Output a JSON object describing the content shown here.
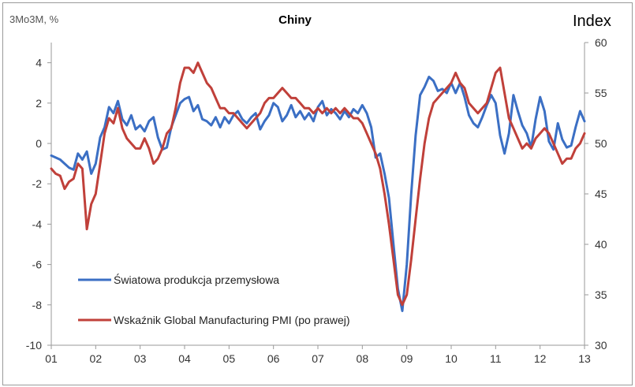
{
  "chart_data": {
    "type": "line",
    "title": "Chiny",
    "ylabel_left": "3Mo3M, %",
    "ylabel_right": "Index",
    "x_tick_labels": [
      "01",
      "02",
      "03",
      "04",
      "05",
      "06",
      "07",
      "08",
      "09",
      "10",
      "11",
      "12",
      "13"
    ],
    "x_range": [
      2001.0,
      2013.0
    ],
    "y_left": {
      "ticks": [
        4,
        2,
        0,
        -2,
        -4,
        -6,
        -8,
        -10
      ],
      "ylim": [
        -10,
        5
      ]
    },
    "y_right": {
      "ticks": [
        60,
        55,
        50,
        45,
        40,
        35,
        30
      ],
      "ylim": [
        30,
        60
      ]
    },
    "grid": false,
    "legend_placement": "lower-left",
    "series": [
      {
        "name": "Światowa produkcja przemysłowa",
        "axis": "left",
        "color": "#3b6fc4",
        "points": [
          [
            2001.0,
            -0.6
          ],
          [
            2001.1,
            -0.7
          ],
          [
            2001.2,
            -0.8
          ],
          [
            2001.3,
            -1.0
          ],
          [
            2001.4,
            -1.2
          ],
          [
            2001.5,
            -1.3
          ],
          [
            2001.6,
            -0.5
          ],
          [
            2001.7,
            -0.8
          ],
          [
            2001.8,
            -0.4
          ],
          [
            2001.9,
            -1.5
          ],
          [
            2002.0,
            -1.0
          ],
          [
            2002.1,
            0.3
          ],
          [
            2002.2,
            0.8
          ],
          [
            2002.3,
            1.8
          ],
          [
            2002.4,
            1.5
          ],
          [
            2002.5,
            2.1
          ],
          [
            2002.6,
            1.2
          ],
          [
            2002.7,
            0.9
          ],
          [
            2002.8,
            1.4
          ],
          [
            2002.9,
            0.7
          ],
          [
            2003.0,
            0.9
          ],
          [
            2003.1,
            0.6
          ],
          [
            2003.2,
            1.1
          ],
          [
            2003.3,
            1.3
          ],
          [
            2003.4,
            0.3
          ],
          [
            2003.5,
            -0.3
          ],
          [
            2003.6,
            -0.2
          ],
          [
            2003.7,
            0.8
          ],
          [
            2003.8,
            1.4
          ],
          [
            2003.9,
            2.0
          ],
          [
            2004.0,
            2.2
          ],
          [
            2004.1,
            2.3
          ],
          [
            2004.2,
            1.6
          ],
          [
            2004.3,
            1.9
          ],
          [
            2004.4,
            1.2
          ],
          [
            2004.5,
            1.1
          ],
          [
            2004.6,
            0.9
          ],
          [
            2004.7,
            1.3
          ],
          [
            2004.8,
            0.8
          ],
          [
            2004.9,
            1.3
          ],
          [
            2005.0,
            1.0
          ],
          [
            2005.1,
            1.4
          ],
          [
            2005.2,
            1.6
          ],
          [
            2005.3,
            1.2
          ],
          [
            2005.4,
            1.0
          ],
          [
            2005.5,
            1.3
          ],
          [
            2005.6,
            1.5
          ],
          [
            2005.7,
            0.7
          ],
          [
            2005.8,
            1.1
          ],
          [
            2005.9,
            1.4
          ],
          [
            2006.0,
            2.0
          ],
          [
            2006.1,
            1.8
          ],
          [
            2006.2,
            1.1
          ],
          [
            2006.3,
            1.4
          ],
          [
            2006.4,
            1.9
          ],
          [
            2006.5,
            1.3
          ],
          [
            2006.6,
            1.6
          ],
          [
            2006.7,
            1.2
          ],
          [
            2006.8,
            1.5
          ],
          [
            2006.9,
            1.1
          ],
          [
            2007.0,
            1.8
          ],
          [
            2007.1,
            2.1
          ],
          [
            2007.2,
            1.4
          ],
          [
            2007.3,
            1.7
          ],
          [
            2007.4,
            1.5
          ],
          [
            2007.5,
            1.2
          ],
          [
            2007.6,
            1.6
          ],
          [
            2007.7,
            1.3
          ],
          [
            2007.8,
            1.7
          ],
          [
            2007.9,
            1.5
          ],
          [
            2008.0,
            1.9
          ],
          [
            2008.1,
            1.5
          ],
          [
            2008.2,
            0.8
          ],
          [
            2008.3,
            -0.7
          ],
          [
            2008.4,
            -0.5
          ],
          [
            2008.5,
            -1.5
          ],
          [
            2008.6,
            -2.7
          ],
          [
            2008.7,
            -5.0
          ],
          [
            2008.8,
            -7.2
          ],
          [
            2008.9,
            -8.3
          ],
          [
            2009.0,
            -6.0
          ],
          [
            2009.1,
            -2.5
          ],
          [
            2009.2,
            0.4
          ],
          [
            2009.3,
            2.4
          ],
          [
            2009.4,
            2.8
          ],
          [
            2009.5,
            3.3
          ],
          [
            2009.6,
            3.1
          ],
          [
            2009.7,
            2.6
          ],
          [
            2009.8,
            2.7
          ],
          [
            2009.9,
            2.5
          ],
          [
            2010.0,
            3.0
          ],
          [
            2010.1,
            2.5
          ],
          [
            2010.2,
            3.0
          ],
          [
            2010.3,
            2.3
          ],
          [
            2010.4,
            1.4
          ],
          [
            2010.5,
            1.0
          ],
          [
            2010.6,
            0.8
          ],
          [
            2010.7,
            1.3
          ],
          [
            2010.8,
            1.9
          ],
          [
            2010.9,
            2.4
          ],
          [
            2011.0,
            2.0
          ],
          [
            2011.1,
            0.4
          ],
          [
            2011.2,
            -0.5
          ],
          [
            2011.3,
            0.5
          ],
          [
            2011.4,
            2.4
          ],
          [
            2011.5,
            1.6
          ],
          [
            2011.6,
            0.9
          ],
          [
            2011.7,
            0.5
          ],
          [
            2011.8,
            -0.2
          ],
          [
            2011.9,
            1.2
          ],
          [
            2012.0,
            2.3
          ],
          [
            2012.1,
            1.6
          ],
          [
            2012.2,
            0.1
          ],
          [
            2012.3,
            -0.3
          ],
          [
            2012.4,
            1.0
          ],
          [
            2012.5,
            0.2
          ],
          [
            2012.6,
            -0.2
          ],
          [
            2012.7,
            -0.1
          ],
          [
            2012.8,
            0.8
          ],
          [
            2012.9,
            1.6
          ],
          [
            2013.0,
            1.1
          ]
        ]
      },
      {
        "name": "Wskaźnik Global Manufacturing PMI (po prawej)",
        "axis": "right",
        "color": "#c0403a",
        "points": [
          [
            2001.0,
            47.5
          ],
          [
            2001.1,
            47.0
          ],
          [
            2001.2,
            46.8
          ],
          [
            2001.3,
            45.5
          ],
          [
            2001.4,
            46.2
          ],
          [
            2001.5,
            46.5
          ],
          [
            2001.6,
            48.0
          ],
          [
            2001.7,
            47.5
          ],
          [
            2001.8,
            41.5
          ],
          [
            2001.9,
            44.0
          ],
          [
            2002.0,
            45.0
          ],
          [
            2002.1,
            48.0
          ],
          [
            2002.2,
            51.0
          ],
          [
            2002.3,
            52.5
          ],
          [
            2002.4,
            52.0
          ],
          [
            2002.5,
            53.5
          ],
          [
            2002.6,
            51.5
          ],
          [
            2002.7,
            50.5
          ],
          [
            2002.8,
            50.0
          ],
          [
            2002.9,
            49.5
          ],
          [
            2003.0,
            49.5
          ],
          [
            2003.1,
            50.5
          ],
          [
            2003.2,
            49.5
          ],
          [
            2003.3,
            48.0
          ],
          [
            2003.4,
            48.5
          ],
          [
            2003.5,
            49.5
          ],
          [
            2003.6,
            51.0
          ],
          [
            2003.7,
            51.5
          ],
          [
            2003.8,
            53.5
          ],
          [
            2003.9,
            56.0
          ],
          [
            2004.0,
            57.5
          ],
          [
            2004.1,
            57.5
          ],
          [
            2004.2,
            57.0
          ],
          [
            2004.3,
            58.0
          ],
          [
            2004.4,
            57.0
          ],
          [
            2004.5,
            56.0
          ],
          [
            2004.6,
            55.5
          ],
          [
            2004.7,
            54.5
          ],
          [
            2004.8,
            53.5
          ],
          [
            2004.9,
            53.5
          ],
          [
            2005.0,
            53.0
          ],
          [
            2005.1,
            53.0
          ],
          [
            2005.2,
            52.5
          ],
          [
            2005.3,
            52.0
          ],
          [
            2005.4,
            51.5
          ],
          [
            2005.5,
            52.0
          ],
          [
            2005.6,
            52.5
          ],
          [
            2005.7,
            53.0
          ],
          [
            2005.8,
            54.0
          ],
          [
            2005.9,
            54.5
          ],
          [
            2006.0,
            54.5
          ],
          [
            2006.1,
            55.0
          ],
          [
            2006.2,
            55.5
          ],
          [
            2006.3,
            55.0
          ],
          [
            2006.4,
            54.5
          ],
          [
            2006.5,
            54.5
          ],
          [
            2006.6,
            54.0
          ],
          [
            2006.7,
            53.5
          ],
          [
            2006.8,
            53.5
          ],
          [
            2006.9,
            53.0
          ],
          [
            2007.0,
            53.5
          ],
          [
            2007.1,
            53.0
          ],
          [
            2007.2,
            53.5
          ],
          [
            2007.3,
            53.0
          ],
          [
            2007.4,
            53.5
          ],
          [
            2007.5,
            53.0
          ],
          [
            2007.6,
            53.5
          ],
          [
            2007.7,
            53.0
          ],
          [
            2007.8,
            52.5
          ],
          [
            2007.9,
            52.5
          ],
          [
            2008.0,
            52.0
          ],
          [
            2008.1,
            51.0
          ],
          [
            2008.2,
            50.0
          ],
          [
            2008.3,
            49.0
          ],
          [
            2008.4,
            47.5
          ],
          [
            2008.5,
            45.0
          ],
          [
            2008.6,
            42.0
          ],
          [
            2008.7,
            38.5
          ],
          [
            2008.8,
            35.0
          ],
          [
            2008.9,
            34.0
          ],
          [
            2009.0,
            35.0
          ],
          [
            2009.1,
            38.5
          ],
          [
            2009.2,
            42.5
          ],
          [
            2009.3,
            46.5
          ],
          [
            2009.4,
            50.0
          ],
          [
            2009.5,
            52.5
          ],
          [
            2009.6,
            54.0
          ],
          [
            2009.7,
            54.5
          ],
          [
            2009.8,
            55.0
          ],
          [
            2009.9,
            55.5
          ],
          [
            2010.0,
            56.0
          ],
          [
            2010.1,
            57.0
          ],
          [
            2010.2,
            56.0
          ],
          [
            2010.3,
            55.5
          ],
          [
            2010.4,
            54.0
          ],
          [
            2010.5,
            53.5
          ],
          [
            2010.6,
            53.0
          ],
          [
            2010.7,
            53.5
          ],
          [
            2010.8,
            54.0
          ],
          [
            2010.9,
            55.5
          ],
          [
            2011.0,
            57.0
          ],
          [
            2011.1,
            57.5
          ],
          [
            2011.2,
            55.0
          ],
          [
            2011.3,
            52.5
          ],
          [
            2011.4,
            51.5
          ],
          [
            2011.5,
            50.5
          ],
          [
            2011.6,
            49.5
          ],
          [
            2011.7,
            50.0
          ],
          [
            2011.8,
            49.5
          ],
          [
            2011.9,
            50.5
          ],
          [
            2012.0,
            51.0
          ],
          [
            2012.1,
            51.5
          ],
          [
            2012.2,
            51.0
          ],
          [
            2012.3,
            50.0
          ],
          [
            2012.4,
            49.0
          ],
          [
            2012.5,
            48.0
          ],
          [
            2012.6,
            48.5
          ],
          [
            2012.7,
            48.5
          ],
          [
            2012.8,
            49.5
          ],
          [
            2012.9,
            50.0
          ],
          [
            2013.0,
            51.0
          ]
        ]
      }
    ]
  }
}
